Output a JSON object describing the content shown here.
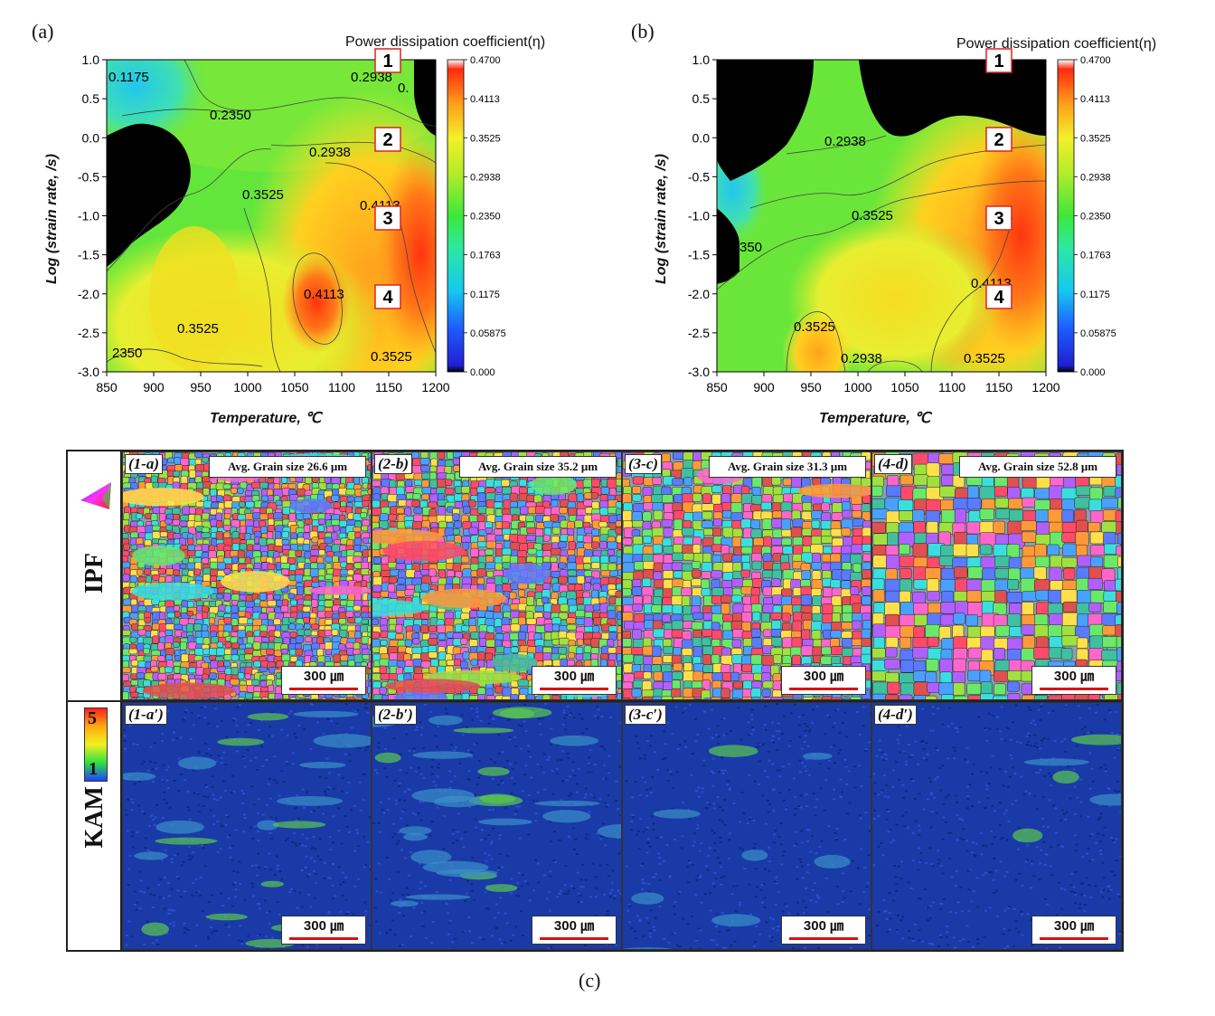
{
  "figure": {
    "caption": "(c)",
    "panel_a_label": "(a)",
    "panel_b_label": "(b)"
  },
  "maps": [
    {
      "colorbar_title": "Power dissipation coefficient(η)",
      "xlabel": "Temperature, ℃",
      "ylabel": "Log (strain rate, /s)",
      "contour_labels": [
        "0.1175",
        "0.2350",
        "0.2938",
        "0.3525",
        "0.4113",
        "0.4113",
        "0.3525",
        "0.3525",
        "2350",
        "0."
      ],
      "markers": [
        "1",
        "2",
        "3",
        "4"
      ]
    },
    {
      "colorbar_title": "Power dissipation coefficient(η)",
      "xlabel": "Temperature, ℃",
      "ylabel": "Log (strain rate, /s)",
      "contour_labels": [
        "0.2938",
        "0.3525",
        "0.4113",
        "0.3525",
        "0.2938",
        "0.3525",
        "350"
      ],
      "markers": [
        "1",
        "2",
        "3",
        "4"
      ]
    }
  ],
  "chart_data": [
    {
      "type": "heatmap",
      "title": "Power dissipation coefficient(η)",
      "xlabel": "Temperature, ℃",
      "ylabel": "Log (strain rate, /s)",
      "xlim": [
        850,
        1200
      ],
      "ylim": [
        -3.0,
        1.0
      ],
      "x_ticks": [
        "850",
        "900",
        "950",
        "1000",
        "1050",
        "1100",
        "1150",
        "1200"
      ],
      "y_ticks": [
        "1.0",
        "0.5",
        "0.0",
        "-0.5",
        "-1.0",
        "-1.5",
        "-2.0",
        "-2.5",
        "-3.0"
      ],
      "colorbar_ticks": [
        "0.4700",
        "0.4113",
        "0.3525",
        "0.2938",
        "0.2350",
        "0.1763",
        "0.1175",
        "0.05875",
        "0.000"
      ],
      "colorbar_range": [
        0.0,
        0.47
      ],
      "contour_levels": [
        0.1175,
        0.235,
        0.2938,
        0.3525,
        0.4113
      ],
      "marked_points": [
        {
          "label": "1",
          "temperature": 1150,
          "log_strain_rate": 1.0
        },
        {
          "label": "2",
          "temperature": 1150,
          "log_strain_rate": 0.0
        },
        {
          "label": "3",
          "temperature": 1150,
          "log_strain_rate": -1.0
        },
        {
          "label": "4",
          "temperature": 1150,
          "log_strain_rate": -2.0
        }
      ]
    },
    {
      "type": "heatmap",
      "title": "Power dissipation coefficient(η)",
      "xlabel": "Temperature, ℃",
      "ylabel": "Log (strain rate, /s)",
      "xlim": [
        850,
        1200
      ],
      "ylim": [
        -3.0,
        1.0
      ],
      "x_ticks": [
        "850",
        "900",
        "950",
        "1000",
        "1050",
        "1100",
        "1150",
        "1200"
      ],
      "y_ticks": [
        "1.0",
        "0.5",
        "0.0",
        "-0.5",
        "-1.0",
        "-1.5",
        "-2.0",
        "-2.5",
        "-3.0"
      ],
      "colorbar_ticks": [
        "0.4700",
        "0.4113",
        "0.3525",
        "0.2938",
        "0.2350",
        "0.1763",
        "0.1175",
        "0.05875",
        "0.000"
      ],
      "colorbar_range": [
        0.0,
        0.47
      ],
      "contour_levels": [
        0.235,
        0.2938,
        0.3525,
        0.4113
      ],
      "marked_points": [
        {
          "label": "1",
          "temperature": 1150,
          "log_strain_rate": 1.0
        },
        {
          "label": "2",
          "temperature": 1150,
          "log_strain_rate": 0.0
        },
        {
          "label": "3",
          "temperature": 1150,
          "log_strain_rate": -1.0
        },
        {
          "label": "4",
          "temperature": 1150,
          "log_strain_rate": -2.0
        }
      ]
    }
  ],
  "micrographs": {
    "row_labels": [
      "IPF",
      "KAM"
    ],
    "kam_legend": {
      "max": "5",
      "min": "1"
    },
    "ipf": [
      {
        "label": "(1-a)",
        "grain_size": "Avg. Grain  size 26.6 μm",
        "scale": "300 ㎛"
      },
      {
        "label": "(2-b)",
        "grain_size": "Avg. Grain  size 35.2 μm",
        "scale": "300 ㎛"
      },
      {
        "label": "(3-c)",
        "grain_size": "Avg. Grain  size 31.3 μm",
        "scale": "300 ㎛"
      },
      {
        "label": "(4-d)",
        "grain_size": "Avg. Grain  size 52.8 μm",
        "scale": "300 ㎛"
      }
    ],
    "kam": [
      {
        "label": "(1-a′)",
        "scale": "300 ㎛"
      },
      {
        "label": "(2-b′)",
        "scale": "300 ㎛"
      },
      {
        "label": "(3-c′)",
        "scale": "300 ㎛"
      },
      {
        "label": "(4-d′)",
        "scale": "300 ㎛"
      }
    ]
  }
}
